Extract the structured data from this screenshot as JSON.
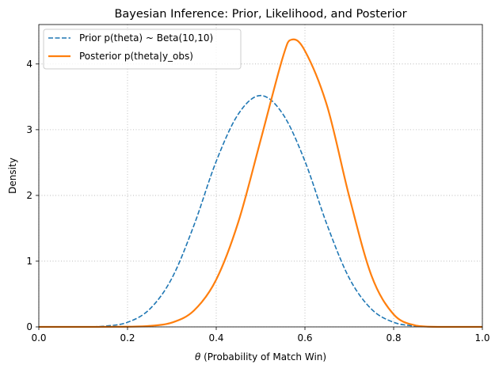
{
  "chart_data": {
    "type": "line",
    "title": "Bayesian Inference: Prior, Likelihood, and Posterior",
    "xlabel_symbol": "θ",
    "xlabel_rest": " (Probability of Match Win)",
    "ylabel": "Density",
    "xlim": [
      0.0,
      1.0
    ],
    "ylim": [
      0,
      4.6
    ],
    "x_ticks": [
      "0.0",
      "0.2",
      "0.4",
      "0.6",
      "0.8",
      "1.0"
    ],
    "y_ticks": [
      "0",
      "1",
      "2",
      "3",
      "4"
    ],
    "grid": true,
    "legend_position": "top-left",
    "series": [
      {
        "name": "Prior p(theta) ~ Beta(10,10)",
        "color": "#1f77b4",
        "style": "dashed",
        "x": [
          0.0,
          0.05,
          0.1,
          0.15,
          0.2,
          0.25,
          0.3,
          0.35,
          0.4,
          0.45,
          0.5,
          0.55,
          0.6,
          0.65,
          0.7,
          0.75,
          0.8,
          0.85,
          0.9,
          0.95,
          1.0
        ],
        "y": [
          0.0,
          0.0,
          0.001,
          0.012,
          0.07,
          0.27,
          0.74,
          1.55,
          2.52,
          3.24,
          3.52,
          3.24,
          2.52,
          1.55,
          0.74,
          0.27,
          0.07,
          0.012,
          0.001,
          0.0,
          0.0
        ]
      },
      {
        "name": "Posterior p(theta|y_obs)",
        "color": "#ff7f0e",
        "style": "solid",
        "x": [
          0.0,
          0.1,
          0.2,
          0.25,
          0.3,
          0.35,
          0.4,
          0.45,
          0.5,
          0.55,
          0.57,
          0.6,
          0.65,
          0.7,
          0.75,
          0.8,
          0.85,
          0.9,
          1.0
        ],
        "y": [
          0.0,
          0.0,
          0.003,
          0.015,
          0.065,
          0.25,
          0.72,
          1.6,
          2.84,
          4.1,
          4.37,
          4.2,
          3.36,
          1.98,
          0.78,
          0.19,
          0.02,
          0.0,
          0.0
        ]
      }
    ]
  }
}
